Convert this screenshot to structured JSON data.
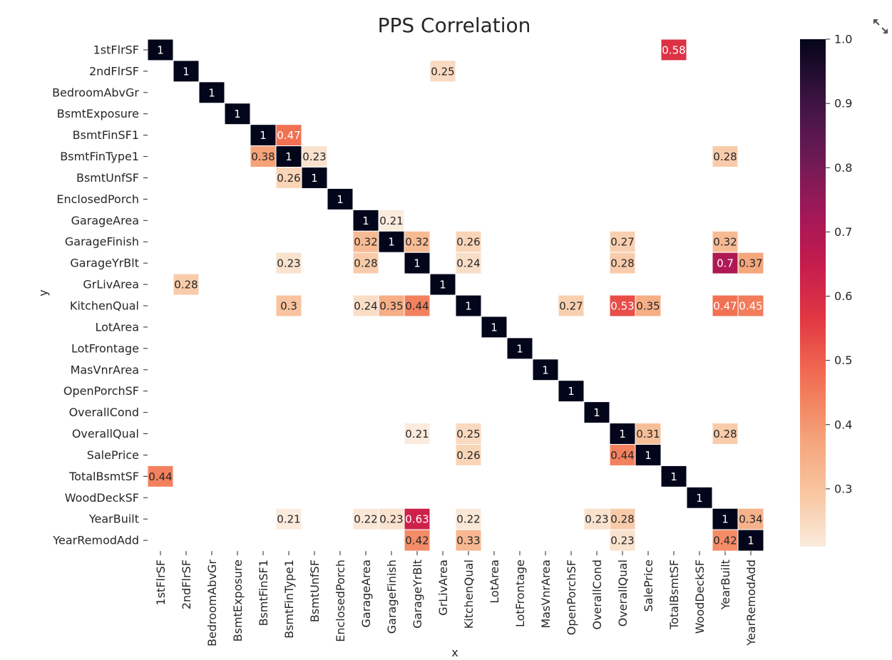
{
  "chart_data": {
    "type": "heatmap",
    "title": "PPS Correlation",
    "xlabel": "x",
    "ylabel": "y",
    "x_categories": [
      "1stFlrSF",
      "2ndFlrSF",
      "BedroomAbvGr",
      "BsmtExposure",
      "BsmtFinSF1",
      "BsmtFinType1",
      "BsmtUnfSF",
      "EnclosedPorch",
      "GarageArea",
      "GarageFinish",
      "GarageYrBlt",
      "GrLivArea",
      "KitchenQual",
      "LotArea",
      "LotFrontage",
      "MasVnrArea",
      "OpenPorchSF",
      "OverallCond",
      "OverallQual",
      "SalePrice",
      "TotalBsmtSF",
      "WoodDeckSF",
      "YearBuilt",
      "YearRemodAdd"
    ],
    "y_categories": [
      "1stFlrSF",
      "2ndFlrSF",
      "BedroomAbvGr",
      "BsmtExposure",
      "BsmtFinSF1",
      "BsmtFinType1",
      "BsmtUnfSF",
      "EnclosedPorch",
      "GarageArea",
      "GarageFinish",
      "GarageYrBlt",
      "GrLivArea",
      "KitchenQual",
      "LotArea",
      "LotFrontage",
      "MasVnrArea",
      "OpenPorchSF",
      "OverallCond",
      "OverallQual",
      "SalePrice",
      "TotalBsmtSF",
      "WoodDeckSF",
      "YearBuilt",
      "YearRemodAdd"
    ],
    "cells": [
      {
        "y": "1stFlrSF",
        "x": "1stFlrSF",
        "value": 1,
        "label": "1"
      },
      {
        "y": "1stFlrSF",
        "x": "TotalBsmtSF",
        "value": 0.58,
        "label": "0.58"
      },
      {
        "y": "2ndFlrSF",
        "x": "2ndFlrSF",
        "value": 1,
        "label": "1"
      },
      {
        "y": "2ndFlrSF",
        "x": "GrLivArea",
        "value": 0.25,
        "label": "0.25"
      },
      {
        "y": "BedroomAbvGr",
        "x": "BedroomAbvGr",
        "value": 1,
        "label": "1"
      },
      {
        "y": "BsmtExposure",
        "x": "BsmtExposure",
        "value": 1,
        "label": "1"
      },
      {
        "y": "BsmtFinSF1",
        "x": "BsmtFinSF1",
        "value": 1,
        "label": "1"
      },
      {
        "y": "BsmtFinSF1",
        "x": "BsmtFinType1",
        "value": 0.47,
        "label": "0.47"
      },
      {
        "y": "BsmtFinType1",
        "x": "BsmtFinSF1",
        "value": 0.38,
        "label": "0.38"
      },
      {
        "y": "BsmtFinType1",
        "x": "BsmtFinType1",
        "value": 1,
        "label": "1"
      },
      {
        "y": "BsmtFinType1",
        "x": "BsmtUnfSF",
        "value": 0.23,
        "label": "0.23"
      },
      {
        "y": "BsmtFinType1",
        "x": "YearBuilt",
        "value": 0.28,
        "label": "0.28"
      },
      {
        "y": "BsmtUnfSF",
        "x": "BsmtFinType1",
        "value": 0.26,
        "label": "0.26"
      },
      {
        "y": "BsmtUnfSF",
        "x": "BsmtUnfSF",
        "value": 1,
        "label": "1"
      },
      {
        "y": "EnclosedPorch",
        "x": "EnclosedPorch",
        "value": 1,
        "label": "1"
      },
      {
        "y": "GarageArea",
        "x": "GarageArea",
        "value": 1,
        "label": "1"
      },
      {
        "y": "GarageArea",
        "x": "GarageFinish",
        "value": 0.21,
        "label": "0.21"
      },
      {
        "y": "GarageFinish",
        "x": "GarageArea",
        "value": 0.32,
        "label": "0.32"
      },
      {
        "y": "GarageFinish",
        "x": "GarageFinish",
        "value": 1,
        "label": "1"
      },
      {
        "y": "GarageFinish",
        "x": "GarageYrBlt",
        "value": 0.32,
        "label": "0.32"
      },
      {
        "y": "GarageFinish",
        "x": "KitchenQual",
        "value": 0.26,
        "label": "0.26"
      },
      {
        "y": "GarageFinish",
        "x": "OverallQual",
        "value": 0.27,
        "label": "0.27"
      },
      {
        "y": "GarageFinish",
        "x": "YearBuilt",
        "value": 0.32,
        "label": "0.32"
      },
      {
        "y": "GarageYrBlt",
        "x": "BsmtFinType1",
        "value": 0.23,
        "label": "0.23"
      },
      {
        "y": "GarageYrBlt",
        "x": "GarageArea",
        "value": 0.28,
        "label": "0.28"
      },
      {
        "y": "GarageYrBlt",
        "x": "GarageYrBlt",
        "value": 1,
        "label": "1"
      },
      {
        "y": "GarageYrBlt",
        "x": "KitchenQual",
        "value": 0.24,
        "label": "0.24"
      },
      {
        "y": "GarageYrBlt",
        "x": "OverallQual",
        "value": 0.28,
        "label": "0.28"
      },
      {
        "y": "GarageYrBlt",
        "x": "YearBuilt",
        "value": 0.7,
        "label": "0.7"
      },
      {
        "y": "GarageYrBlt",
        "x": "YearRemodAdd",
        "value": 0.37,
        "label": "0.37"
      },
      {
        "y": "GrLivArea",
        "x": "2ndFlrSF",
        "value": 0.28,
        "label": "0.28"
      },
      {
        "y": "GrLivArea",
        "x": "GrLivArea",
        "value": 1,
        "label": "1"
      },
      {
        "y": "KitchenQual",
        "x": "BsmtFinType1",
        "value": 0.3,
        "label": "0.3"
      },
      {
        "y": "KitchenQual",
        "x": "GarageArea",
        "value": 0.24,
        "label": "0.24"
      },
      {
        "y": "KitchenQual",
        "x": "GarageFinish",
        "value": 0.35,
        "label": "0.35"
      },
      {
        "y": "KitchenQual",
        "x": "GarageYrBlt",
        "value": 0.44,
        "label": "0.44"
      },
      {
        "y": "KitchenQual",
        "x": "KitchenQual",
        "value": 1,
        "label": "1"
      },
      {
        "y": "KitchenQual",
        "x": "OpenPorchSF",
        "value": 0.27,
        "label": "0.27"
      },
      {
        "y": "KitchenQual",
        "x": "OverallQual",
        "value": 0.53,
        "label": "0.53"
      },
      {
        "y": "KitchenQual",
        "x": "SalePrice",
        "value": 0.35,
        "label": "0.35"
      },
      {
        "y": "KitchenQual",
        "x": "YearBuilt",
        "value": 0.47,
        "label": "0.47"
      },
      {
        "y": "KitchenQual",
        "x": "YearRemodAdd",
        "value": 0.45,
        "label": "0.45"
      },
      {
        "y": "LotArea",
        "x": "LotArea",
        "value": 1,
        "label": "1"
      },
      {
        "y": "LotFrontage",
        "x": "LotFrontage",
        "value": 1,
        "label": "1"
      },
      {
        "y": "MasVnrArea",
        "x": "MasVnrArea",
        "value": 1,
        "label": "1"
      },
      {
        "y": "OpenPorchSF",
        "x": "OpenPorchSF",
        "value": 1,
        "label": "1"
      },
      {
        "y": "OverallCond",
        "x": "OverallCond",
        "value": 1,
        "label": "1"
      },
      {
        "y": "OverallQual",
        "x": "GarageYrBlt",
        "value": 0.21,
        "label": "0.21"
      },
      {
        "y": "OverallQual",
        "x": "KitchenQual",
        "value": 0.25,
        "label": "0.25"
      },
      {
        "y": "OverallQual",
        "x": "OverallQual",
        "value": 1,
        "label": "1"
      },
      {
        "y": "OverallQual",
        "x": "SalePrice",
        "value": 0.31,
        "label": "0.31"
      },
      {
        "y": "OverallQual",
        "x": "YearBuilt",
        "value": 0.28,
        "label": "0.28"
      },
      {
        "y": "SalePrice",
        "x": "KitchenQual",
        "value": 0.26,
        "label": "0.26"
      },
      {
        "y": "SalePrice",
        "x": "OverallQual",
        "value": 0.44,
        "label": "0.44"
      },
      {
        "y": "SalePrice",
        "x": "SalePrice",
        "value": 1,
        "label": "1"
      },
      {
        "y": "TotalBsmtSF",
        "x": "1stFlrSF",
        "value": 0.44,
        "label": "0.44"
      },
      {
        "y": "TotalBsmtSF",
        "x": "TotalBsmtSF",
        "value": 1,
        "label": "1"
      },
      {
        "y": "WoodDeckSF",
        "x": "WoodDeckSF",
        "value": 1,
        "label": "1"
      },
      {
        "y": "YearBuilt",
        "x": "BsmtFinType1",
        "value": 0.21,
        "label": "0.21"
      },
      {
        "y": "YearBuilt",
        "x": "GarageArea",
        "value": 0.22,
        "label": "0.22"
      },
      {
        "y": "YearBuilt",
        "x": "GarageFinish",
        "value": 0.23,
        "label": "0.23"
      },
      {
        "y": "YearBuilt",
        "x": "GarageYrBlt",
        "value": 0.63,
        "label": "0.63"
      },
      {
        "y": "YearBuilt",
        "x": "KitchenQual",
        "value": 0.22,
        "label": "0.22"
      },
      {
        "y": "YearBuilt",
        "x": "OverallCond",
        "value": 0.23,
        "label": "0.23"
      },
      {
        "y": "YearBuilt",
        "x": "OverallQual",
        "value": 0.28,
        "label": "0.28"
      },
      {
        "y": "YearBuilt",
        "x": "YearBuilt",
        "value": 1,
        "label": "1"
      },
      {
        "y": "YearBuilt",
        "x": "YearRemodAdd",
        "value": 0.34,
        "label": "0.34"
      },
      {
        "y": "YearRemodAdd",
        "x": "GarageYrBlt",
        "value": 0.42,
        "label": "0.42"
      },
      {
        "y": "YearRemodAdd",
        "x": "KitchenQual",
        "value": 0.33,
        "label": "0.33"
      },
      {
        "y": "YearRemodAdd",
        "x": "OverallQual",
        "value": 0.23,
        "label": "0.23"
      },
      {
        "y": "YearRemodAdd",
        "x": "YearBuilt",
        "value": 0.42,
        "label": "0.42"
      },
      {
        "y": "YearRemodAdd",
        "x": "YearRemodAdd",
        "value": 1,
        "label": "1"
      }
    ],
    "colorbar": {
      "colormap": "rocket_r",
      "range": [
        0.21,
        1.0
      ],
      "ticks": [
        0.3,
        0.4,
        0.5,
        0.6,
        0.7,
        0.8,
        0.9,
        1.0
      ],
      "tick_labels": [
        "0.3",
        "0.4",
        "0.5",
        "0.6",
        "0.7",
        "0.8",
        "0.9",
        "1.0"
      ]
    },
    "grid": false
  },
  "toolbar": {
    "expand_icon": "expand-icon"
  }
}
